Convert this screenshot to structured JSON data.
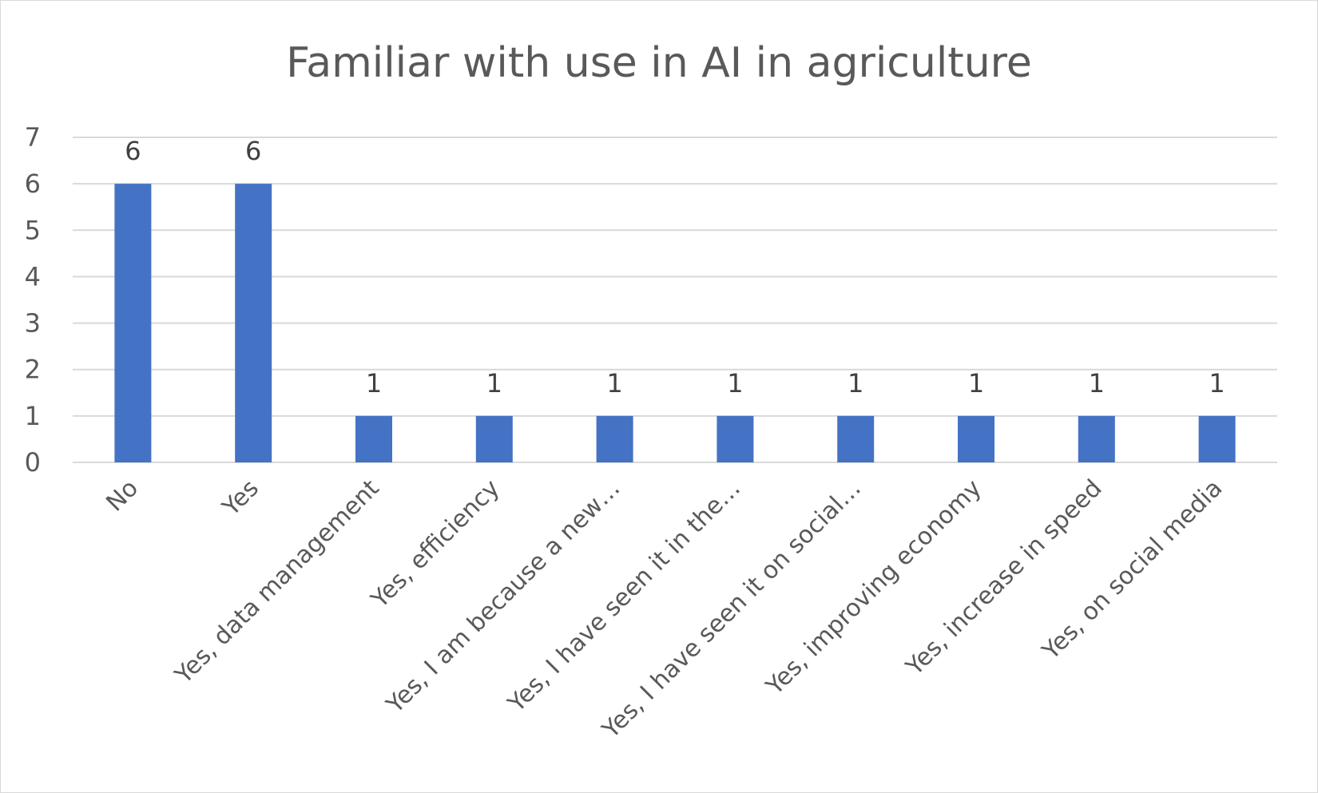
{
  "chart_data": {
    "type": "bar",
    "title": "Familiar with use in AI in agriculture",
    "xlabel": "",
    "ylabel": "",
    "categories": [
      "No",
      "Yes",
      "Yes, data management",
      "Yes, efficiency",
      "Yes, I am because a new…",
      "Yes, I have seen it in the…",
      "Yes, I have seen it on social…",
      "Yes, improving economy",
      "Yes, increase in speed",
      "Yes, on social media"
    ],
    "values": [
      6,
      6,
      1,
      1,
      1,
      1,
      1,
      1,
      1,
      1
    ],
    "ylim": [
      0,
      7
    ],
    "yticks": [
      0,
      1,
      2,
      3,
      4,
      5,
      6,
      7
    ],
    "grid": true,
    "legend": "none",
    "data_labels": true,
    "bar_color": "#4472c4"
  }
}
